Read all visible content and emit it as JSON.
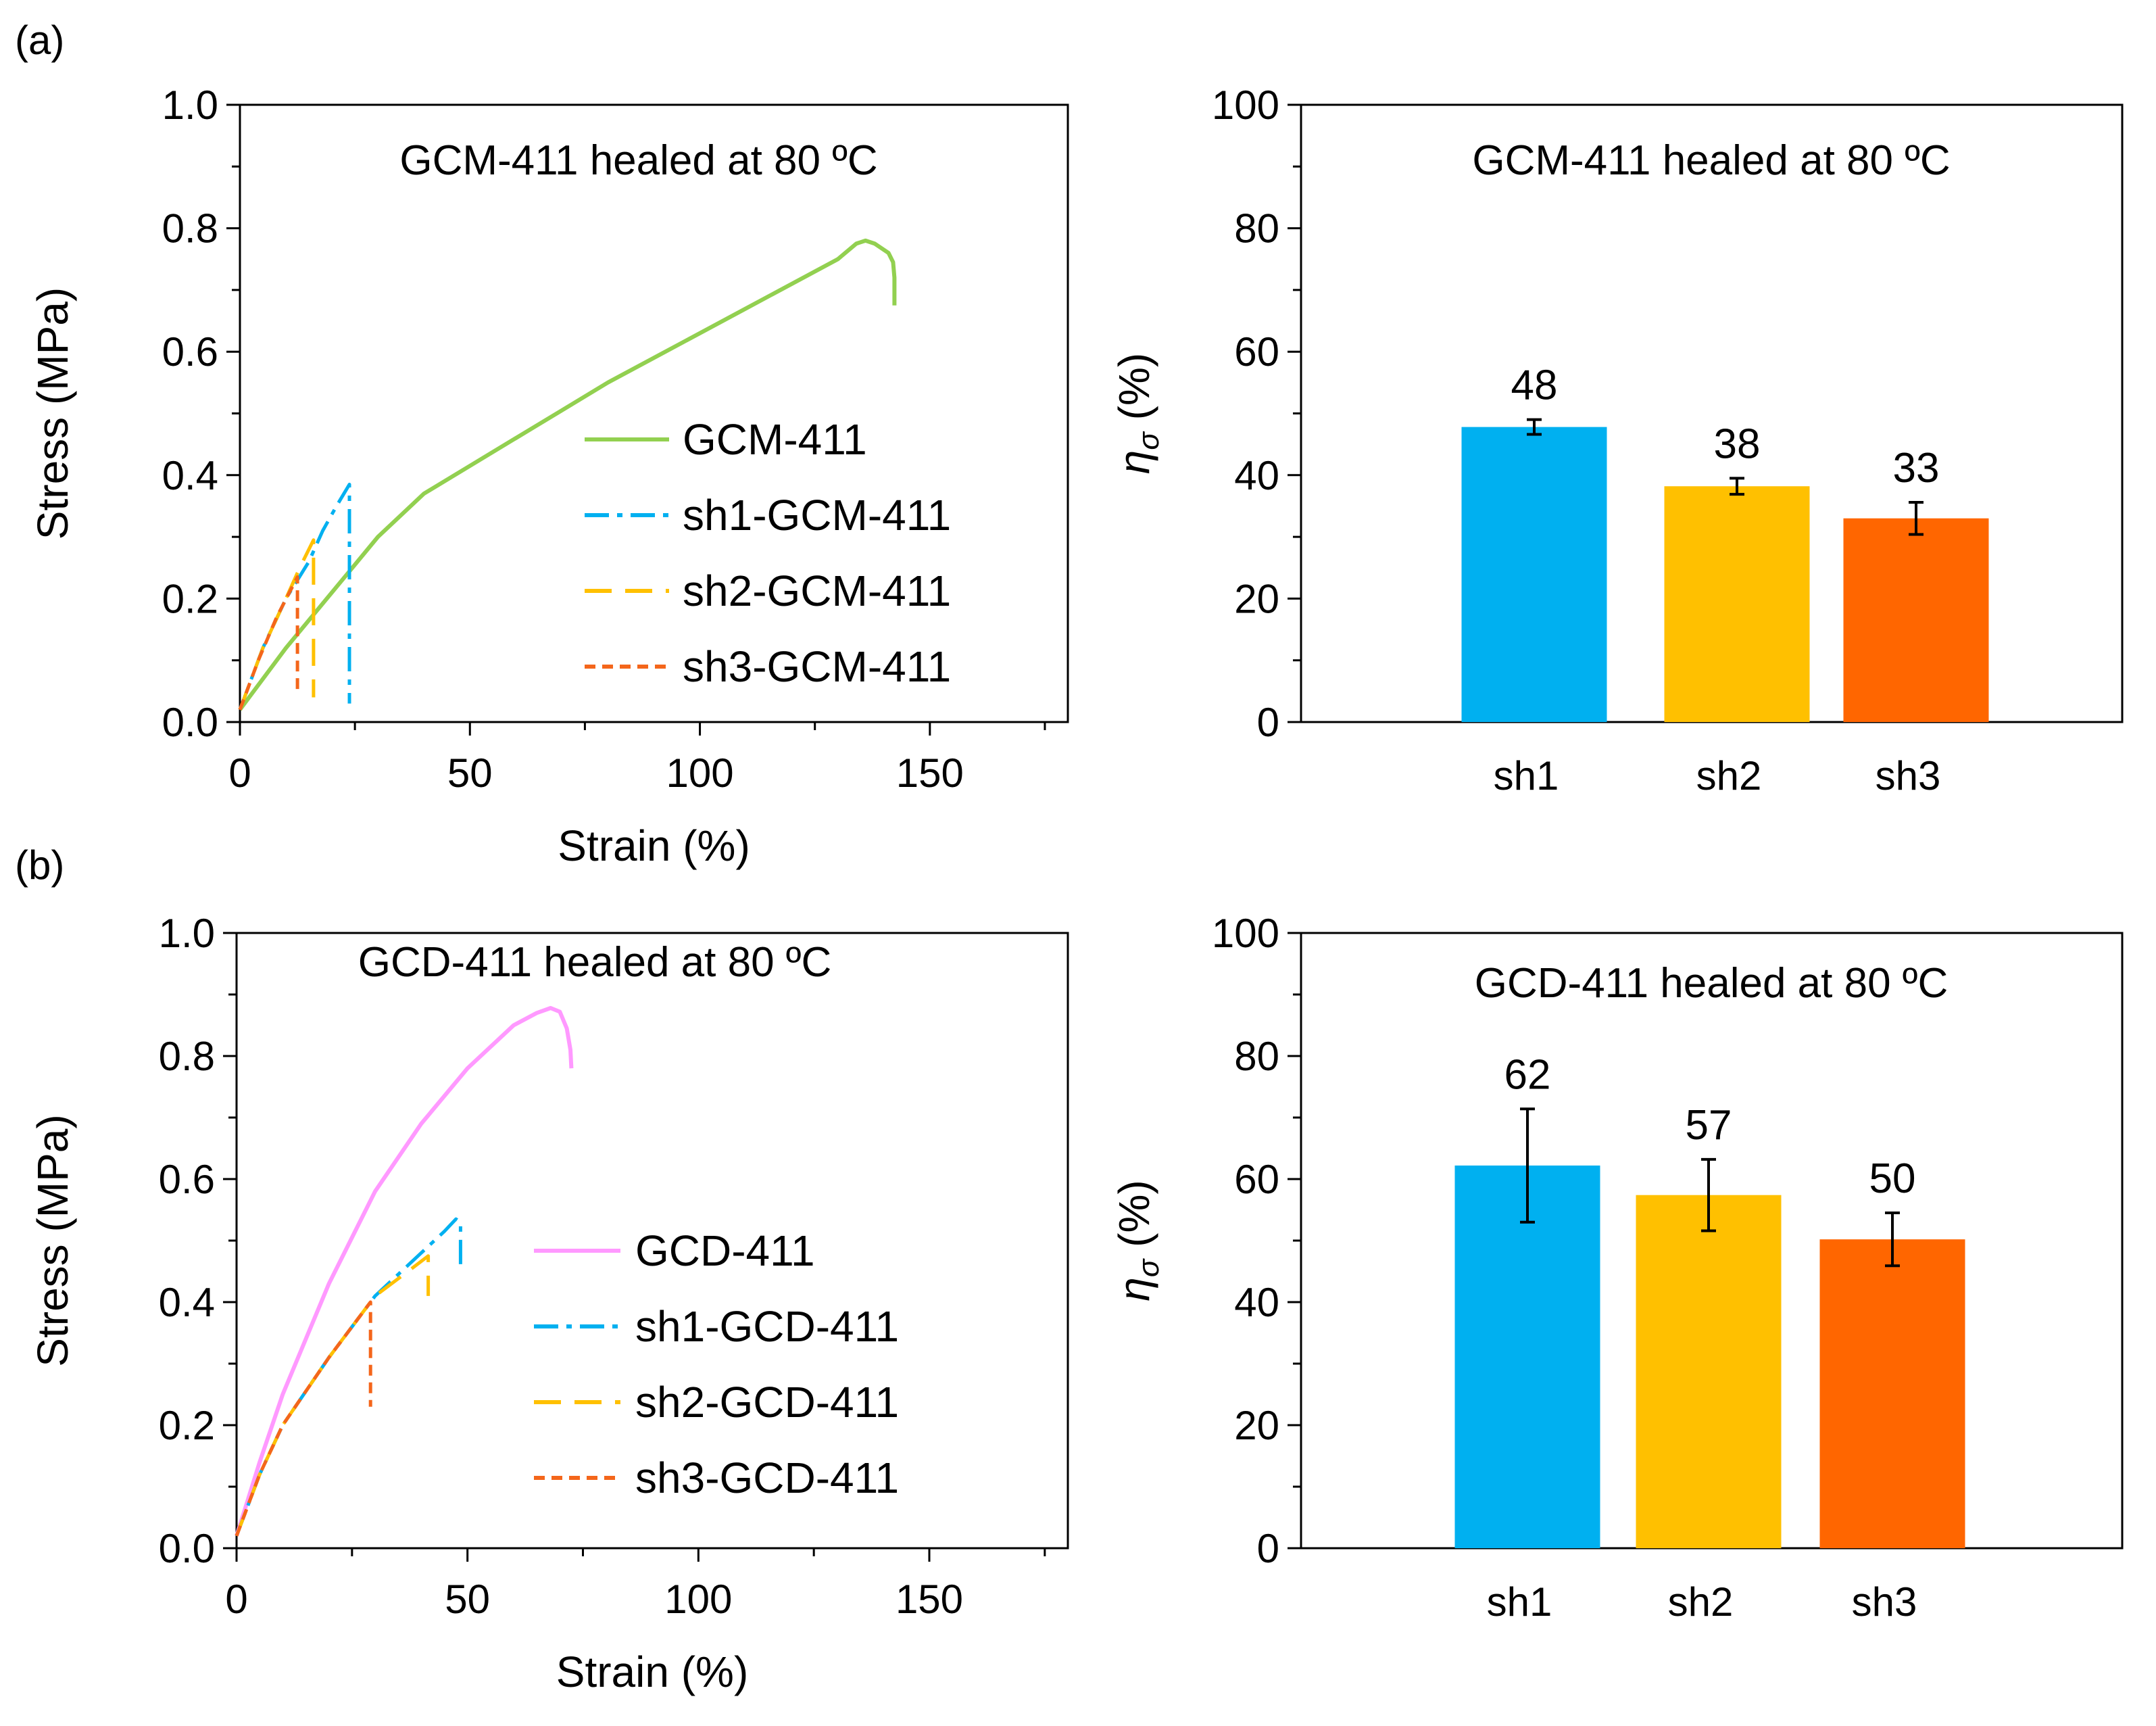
{
  "panel_labels": [
    "(a)",
    "(b)"
  ],
  "chart_data": [
    {
      "type": "line",
      "title": "GCM-411 healed at 80 ºC",
      "xlabel": "Strain (%)",
      "ylabel": "Stress (MPa)",
      "xlim": [
        0,
        180
      ],
      "ylim": [
        0,
        1.0
      ],
      "xticks": [
        0,
        50,
        100,
        150
      ],
      "xtick_labels": [
        "0",
        "50",
        "100",
        "150"
      ],
      "yticks": [
        0,
        0.2,
        0.4,
        0.6,
        0.8,
        1.0
      ],
      "ytick_labels": [
        "0.0",
        "0.2",
        "0.4",
        "0.6",
        "0.8",
        "1.0"
      ],
      "legend_position": "center-right",
      "series": [
        {
          "name": "GCM-411",
          "color": "#92D050",
          "dash": "solid",
          "x": [
            0,
            10,
            20,
            30,
            40,
            50,
            60,
            70,
            80,
            90,
            100,
            110,
            120,
            130,
            134,
            136,
            138,
            141,
            142,
            142.3,
            142.3
          ],
          "y": [
            0.02,
            0.12,
            0.21,
            0.3,
            0.37,
            0.415,
            0.46,
            0.505,
            0.55,
            0.59,
            0.63,
            0.67,
            0.71,
            0.75,
            0.775,
            0.78,
            0.775,
            0.76,
            0.745,
            0.72,
            0.675
          ]
        },
        {
          "name": "sh1-GCM-411",
          "color": "#00B0F0",
          "dash": "dashdot",
          "x": [
            0,
            5,
            10,
            15,
            18,
            21,
            23.8,
            23.8
          ],
          "y": [
            0.02,
            0.12,
            0.2,
            0.26,
            0.31,
            0.35,
            0.385,
            0.03
          ]
        },
        {
          "name": "sh2-GCM-411",
          "color": "#FFC000",
          "dash": "longdash",
          "x": [
            0,
            5,
            10,
            13,
            16,
            16
          ],
          "y": [
            0.02,
            0.12,
            0.2,
            0.25,
            0.295,
            0.04
          ]
        },
        {
          "name": "sh3-GCM-411",
          "color": "#F4661B",
          "dash": "shortdash",
          "x": [
            0,
            4,
            8,
            12.5,
            12.5
          ],
          "y": [
            0.02,
            0.1,
            0.17,
            0.235,
            0.05
          ]
        }
      ]
    },
    {
      "type": "bar",
      "title": "GCM-411 healed at 80 ºC",
      "xlabel": "",
      "ylabel": "ησ (%)",
      "ylabel_symbol": "η",
      "ylabel_subscript": "σ",
      "ylabel_unit": " (%)",
      "ylim": [
        0,
        100
      ],
      "yticks": [
        0,
        20,
        40,
        60,
        80,
        100
      ],
      "ytick_labels": [
        "0",
        "20",
        "40",
        "60",
        "80",
        "100"
      ],
      "categories": [
        "sh1",
        "sh2",
        "sh3"
      ],
      "values": [
        47.8,
        38.2,
        33.0
      ],
      "errors": [
        1.2,
        1.3,
        2.6
      ],
      "data_labels": [
        "48",
        "38",
        "33"
      ],
      "colors": [
        "#00B0F0",
        "#FFC000",
        "#FF6600"
      ]
    },
    {
      "type": "line",
      "title": "GCD-411 healed at 80 ºC",
      "xlabel": "Strain (%)",
      "ylabel": "Stress (MPa)",
      "xlim": [
        0,
        180
      ],
      "ylim": [
        0,
        1.0
      ],
      "xticks": [
        0,
        50,
        100,
        150
      ],
      "xtick_labels": [
        "0",
        "50",
        "100",
        "150"
      ],
      "yticks": [
        0,
        0.2,
        0.4,
        0.6,
        0.8,
        1.0
      ],
      "ytick_labels": [
        "0.0",
        "0.2",
        "0.4",
        "0.6",
        "0.8",
        "1.0"
      ],
      "legend_position": "center-right",
      "series": [
        {
          "name": "GCD-411",
          "color": "#FF99FF",
          "dash": "solid",
          "x": [
            0,
            5,
            10,
            20,
            30,
            40,
            50,
            60,
            65,
            68,
            70,
            71.5,
            72.3,
            72.5
          ],
          "y": [
            0.02,
            0.14,
            0.25,
            0.43,
            0.58,
            0.69,
            0.78,
            0.85,
            0.87,
            0.878,
            0.872,
            0.845,
            0.81,
            0.78
          ]
        },
        {
          "name": "sh1-GCD-411",
          "color": "#00B0F0",
          "dash": "dashdot",
          "x": [
            0,
            5,
            10,
            20,
            30,
            40,
            45,
            47.5,
            48.5,
            48.5
          ],
          "y": [
            0.02,
            0.12,
            0.2,
            0.31,
            0.41,
            0.48,
            0.515,
            0.535,
            0.53,
            0.46
          ]
        },
        {
          "name": "sh2-GCD-411",
          "color": "#FFC000",
          "dash": "longdash",
          "x": [
            0,
            5,
            10,
            20,
            30,
            38,
            41.5,
            41.5
          ],
          "y": [
            0.02,
            0.12,
            0.2,
            0.31,
            0.41,
            0.455,
            0.475,
            0.41
          ]
        },
        {
          "name": "sh3-GCD-411",
          "color": "#F4661B",
          "dash": "shortdash",
          "x": [
            0,
            5,
            10,
            20,
            29,
            29
          ],
          "y": [
            0.02,
            0.12,
            0.2,
            0.31,
            0.4,
            0.23
          ]
        }
      ]
    },
    {
      "type": "bar",
      "title": "GCD-411 healed at 80 ºC",
      "xlabel": "",
      "ylabel": "ησ (%)",
      "ylabel_symbol": "η",
      "ylabel_subscript": "σ",
      "ylabel_unit": " (%)",
      "ylim": [
        0,
        100
      ],
      "yticks": [
        0,
        20,
        40,
        60,
        80,
        100
      ],
      "ytick_labels": [
        "0",
        "20",
        "40",
        "60",
        "80",
        "100"
      ],
      "categories": [
        "sh1",
        "sh2",
        "sh3"
      ],
      "values": [
        62.2,
        57.4,
        50.2
      ],
      "errors": [
        9.2,
        5.8,
        4.3
      ],
      "data_labels": [
        "62",
        "57",
        "50"
      ],
      "colors": [
        "#00B0F0",
        "#FFC000",
        "#FF6600"
      ]
    }
  ]
}
